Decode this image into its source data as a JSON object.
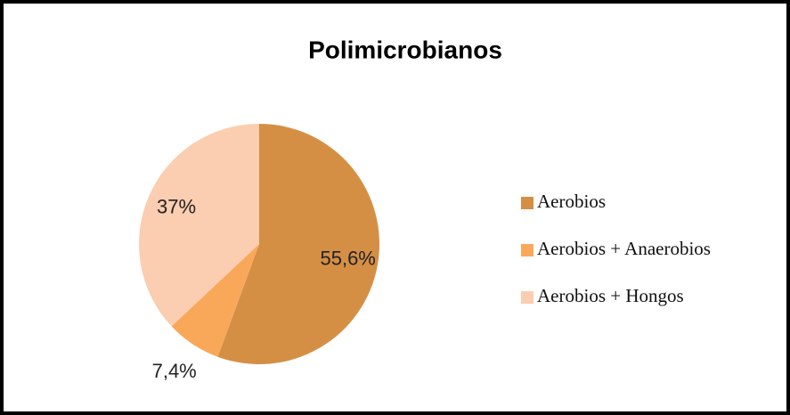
{
  "chart_data": {
    "type": "pie",
    "title": "Polimicrobianos",
    "categories": [
      "Aerobios",
      "Aerobios + Anaerobios",
      "Aerobios + Hongos"
    ],
    "values": [
      55.6,
      7.4,
      37
    ],
    "value_labels": [
      "55,6%",
      "7,4%",
      "37%"
    ],
    "colors": [
      "#d58f45",
      "#f9a85a",
      "#fbcdb1"
    ],
    "legend": "right"
  }
}
